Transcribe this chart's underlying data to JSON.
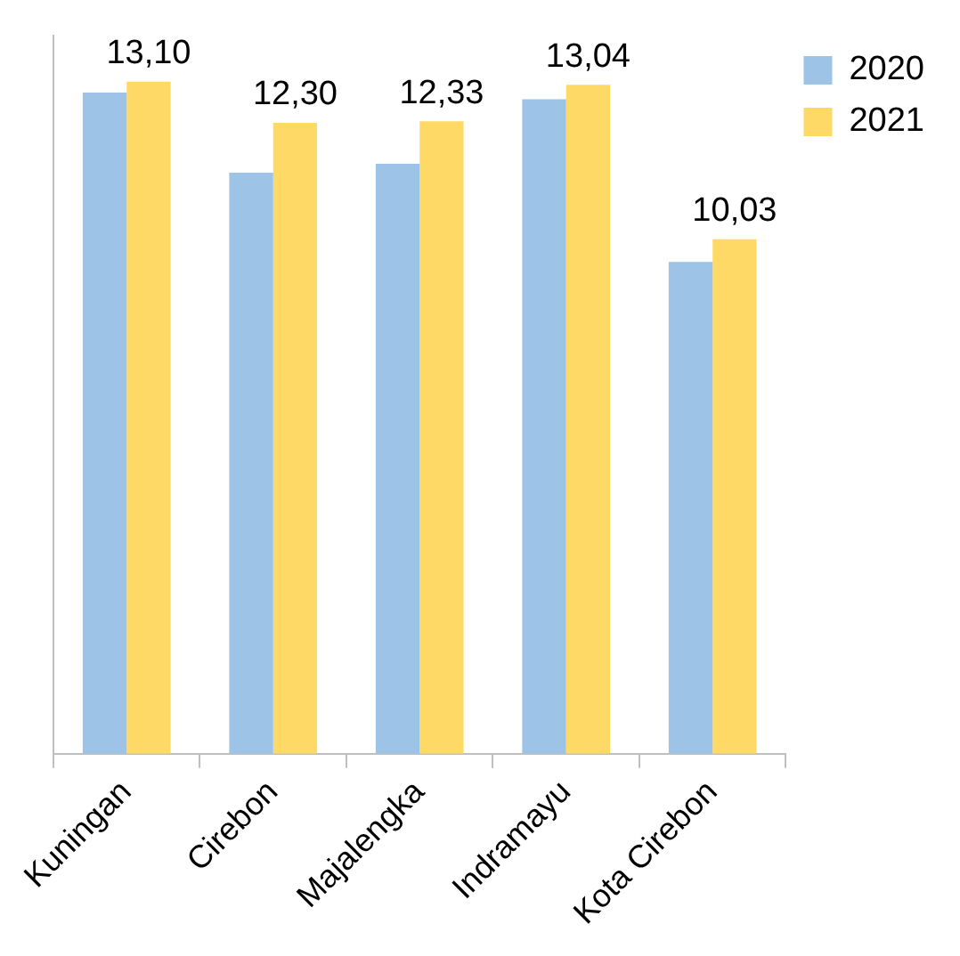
{
  "chart_data": {
    "type": "bar",
    "categories": [
      "Kuningan",
      "Cirebon",
      "Majalengka",
      "Indramayu",
      "Kota Cirebon"
    ],
    "series": [
      {
        "name": "2020",
        "color": "#9dc3e6",
        "values": [
          12.89,
          11.33,
          11.5,
          12.76,
          9.59
        ]
      },
      {
        "name": "2021",
        "color": "#ffd966",
        "values": [
          13.1,
          12.3,
          12.33,
          13.04,
          10.03
        ],
        "value_labels": [
          "13,10",
          "12,30",
          "12,33",
          "13,04",
          "10,03"
        ]
      }
    ],
    "legend": "top right",
    "grid": false,
    "tick_labels": "x"
  }
}
